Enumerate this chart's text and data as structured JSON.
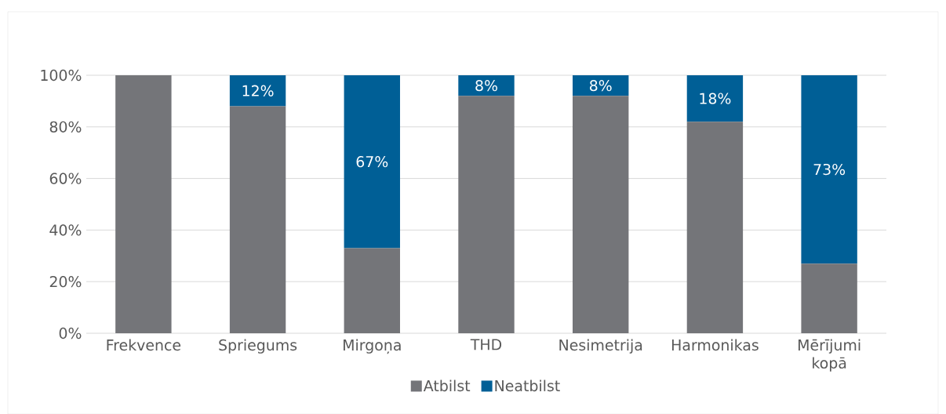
{
  "chart_data": {
    "type": "bar",
    "stacked": true,
    "categories": [
      "Frekvence",
      "Spriegums",
      "Mirgoņa",
      "THD",
      "Nesimetrija",
      "Harmonikas",
      "Mērījumi kopā"
    ],
    "series": [
      {
        "name": "Atbilst",
        "color": "#747579",
        "values": [
          100,
          88,
          33,
          92,
          92,
          82,
          27
        ]
      },
      {
        "name": "Neatbilst",
        "color": "#005f96",
        "values": [
          0,
          12,
          67,
          8,
          8,
          18,
          73
        ],
        "value_labels": [
          null,
          "12%",
          "67%",
          "8%",
          "8%",
          "18%",
          "73%"
        ]
      }
    ],
    "ylim": [
      0,
      100
    ],
    "yticks": [
      {
        "value": 0,
        "label": "0%"
      },
      {
        "value": 20,
        "label": "20%"
      },
      {
        "value": 40,
        "label": "40%"
      },
      {
        "value": 60,
        "label": "60%"
      },
      {
        "value": 80,
        "label": "80%"
      },
      {
        "value": 100,
        "label": "100%"
      }
    ],
    "grid": "y",
    "legend": "bottom"
  }
}
